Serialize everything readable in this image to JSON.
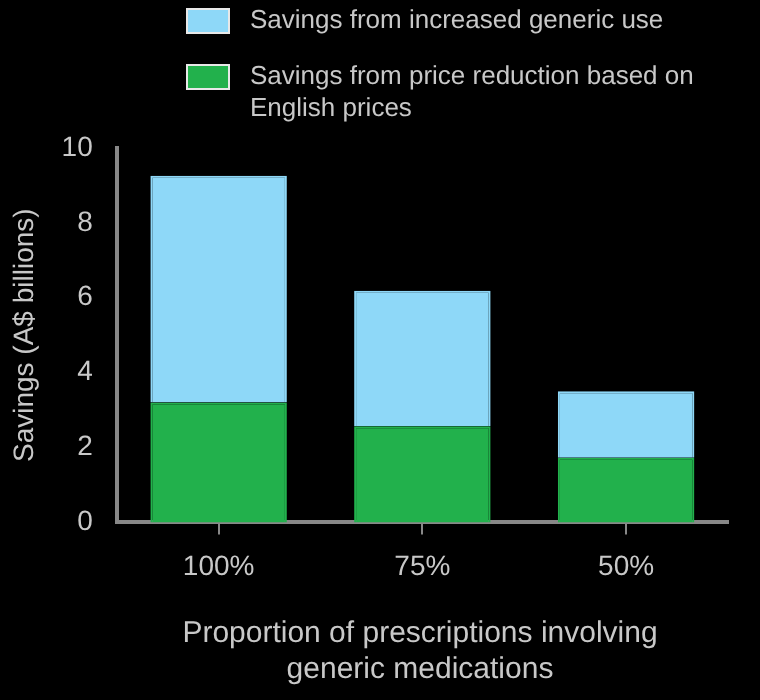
{
  "chart_data": {
    "type": "bar",
    "stacked": true,
    "categories": [
      "100%",
      "75%",
      "50%"
    ],
    "series": [
      {
        "name": "Savings from price reduction based on English prices",
        "color": "#22b14c",
        "values": [
          3.2,
          2.57,
          1.73
        ]
      },
      {
        "name": "Savings from increased generic use",
        "color": "#8ed8f8",
        "values": [
          6.06,
          3.62,
          1.77
        ]
      }
    ],
    "ylabel": "Savings (A$ billions)",
    "xlabel": "Proportion of prescriptions involving generic medications",
    "ylim": [
      0,
      10
    ],
    "yticks": [
      0,
      2,
      4,
      6,
      8,
      10
    ],
    "grid": false,
    "legend": "top"
  }
}
